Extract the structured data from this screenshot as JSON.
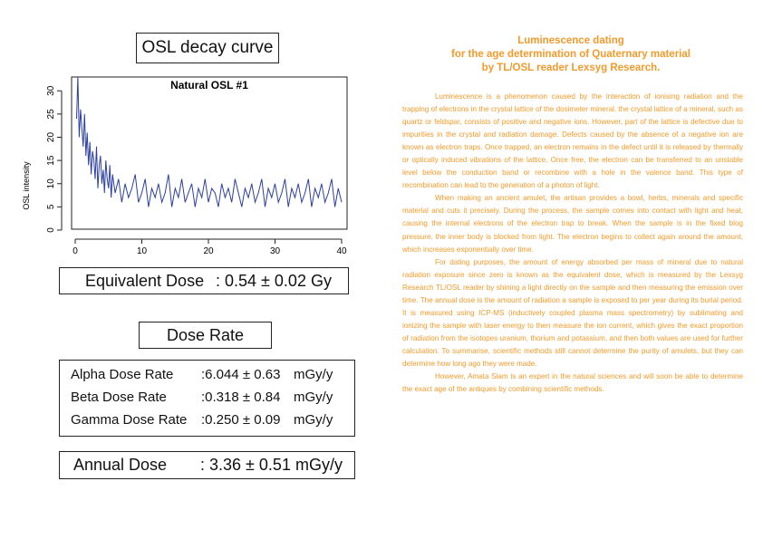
{
  "left": {
    "osl_title": "OSL decay curve",
    "equivalent_dose": {
      "label": "Equivalent Dose",
      "value": ": 0.54 ± 0.02  Gy"
    },
    "dose_rate_title": "Dose Rate",
    "dose_rates": [
      {
        "name": "Alpha Dose Rate",
        "value": ":6.044 ± 0.63",
        "unit": "mGy/y"
      },
      {
        "name": "Beta Dose Rate",
        "value": ":0.318 ± 0.84",
        "unit": "mGy/y"
      },
      {
        "name": "Gamma Dose Rate",
        "value": ":0.250 ± 0.09",
        "unit": "mGy/y"
      }
    ],
    "annual_dose": {
      "label": "Annual Dose",
      "value": ": 3.36 ± 0.51 mGy/y"
    }
  },
  "chart_data": {
    "type": "line",
    "title": "Natural OSL #1",
    "ylabel": "OSL intensity",
    "xlabel": "",
    "xlim": [
      0,
      40
    ],
    "ylim": [
      0,
      32
    ],
    "xticks": [
      0,
      10,
      20,
      30,
      40
    ],
    "yticks": [
      0,
      5,
      10,
      15,
      20,
      25,
      30
    ],
    "grid": false,
    "line_color": "#2a3f9e",
    "x": [
      0.2,
      0.4,
      0.6,
      0.8,
      1,
      1.2,
      1.4,
      1.6,
      1.8,
      2,
      2.2,
      2.4,
      2.6,
      2.8,
      3,
      3.2,
      3.4,
      3.6,
      3.8,
      4,
      4.2,
      4.4,
      4.6,
      4.8,
      5,
      5.2,
      5.4,
      5.6,
      5.8,
      6,
      6.5,
      7,
      7.5,
      8,
      8.5,
      9,
      9.5,
      10,
      10.5,
      11,
      11.5,
      12,
      12.5,
      13,
      13.5,
      14,
      14.5,
      15,
      15.5,
      16,
      16.5,
      17,
      17.5,
      18,
      18.5,
      19,
      19.5,
      20,
      20.5,
      21,
      21.5,
      22,
      22.5,
      23,
      23.5,
      24,
      24.5,
      25,
      25.5,
      26,
      26.5,
      27,
      27.5,
      28,
      28.5,
      29,
      29.5,
      30,
      30.5,
      31,
      31.5,
      32,
      32.5,
      33,
      33.5,
      34,
      34.5,
      35,
      35.5,
      36,
      36.5,
      37,
      37.5,
      38,
      38.5,
      39,
      39.5,
      40
    ],
    "y": [
      24,
      33,
      20,
      26,
      22,
      18,
      25,
      16,
      21,
      14,
      19,
      12,
      17,
      15,
      11,
      18,
      9,
      14,
      16,
      10,
      13,
      8,
      15,
      11,
      9,
      14,
      7,
      12,
      10,
      8,
      11,
      6,
      10,
      7,
      9,
      12,
      6,
      8,
      11,
      5,
      9,
      7,
      10,
      6,
      8,
      12,
      5,
      9,
      7,
      11,
      6,
      8,
      10,
      5,
      9,
      7,
      11,
      6,
      9,
      8,
      5,
      10,
      7,
      9,
      6,
      11,
      8,
      5,
      9,
      7,
      10,
      6,
      8,
      11,
      5,
      9,
      7,
      10,
      6,
      8,
      11,
      5,
      9,
      7,
      10,
      6,
      8,
      11,
      5,
      9,
      7,
      10,
      6,
      8,
      11,
      5,
      9,
      6
    ]
  },
  "right": {
    "title_lines": [
      "Luminescence dating",
      "for the age determination of Quaternary material",
      "by TL/OSL reader Lexsyg Research."
    ],
    "paragraphs": [
      "Luminescence is a phenomenon caused by the interaction of ionising radiation and the trapping of electrons in the crystal lattice of the dosimeter mineral. the crystal lattice of a mineral, such as quartz or feldspar, consists of positive and negative ions. However, part of the lattice is defective due to impurities in the crystal and radiation damage. Defects caused by the absence of a negative ion are known as electron traps. Once trapped, an electron remains in the defect until it is released by thermally or optically induced vibrations of the lattice. Once free, the electron can be transferred to an unstable level below the conduction band or recombine with a hole in the valence band. This type of recombination can lead to the generation of a photon of light.",
      "When making an ancient amulet, the artisan provides a bowl, herbs, minerals and specific material and cuts it precisely. During the process, the sample comes into contact with light and heat, causing the internal electrons of the electron trap to break. When the sample is in the fixed blog pressure, the inner body is blocked from light. The electron begins to collect again around the amount, which increases exponentially over time.",
      "For dating purposes, the amount of energy absorbed per mass of mineral due to natural radiation exposure since zero is known as the equivalent dose, which is measured by the Lexsyg Research TL/OSL reader by shining a light directly on the sample and then measuring the emission over time. The annual dose is the amount of radiation a sample is exposed to per year during its burial period. It is measured using ICP-MS (inductively coupled plasma mass spectrometry) by sublimating and ionizing the sample with laser energy to then measure the ion current, which gives the exact proportion of radiation from the isotopes uranium, thorium and potassium, and then both values are used for further calculation. To summarise, scientific methods still cannot determine the purity of amulets, but they can determine how long ago they were made.",
      "However, Amata Siam is an expert in the natural sciences and will soon be able to determine the exact age of the antiques by combining scientific methods."
    ]
  }
}
